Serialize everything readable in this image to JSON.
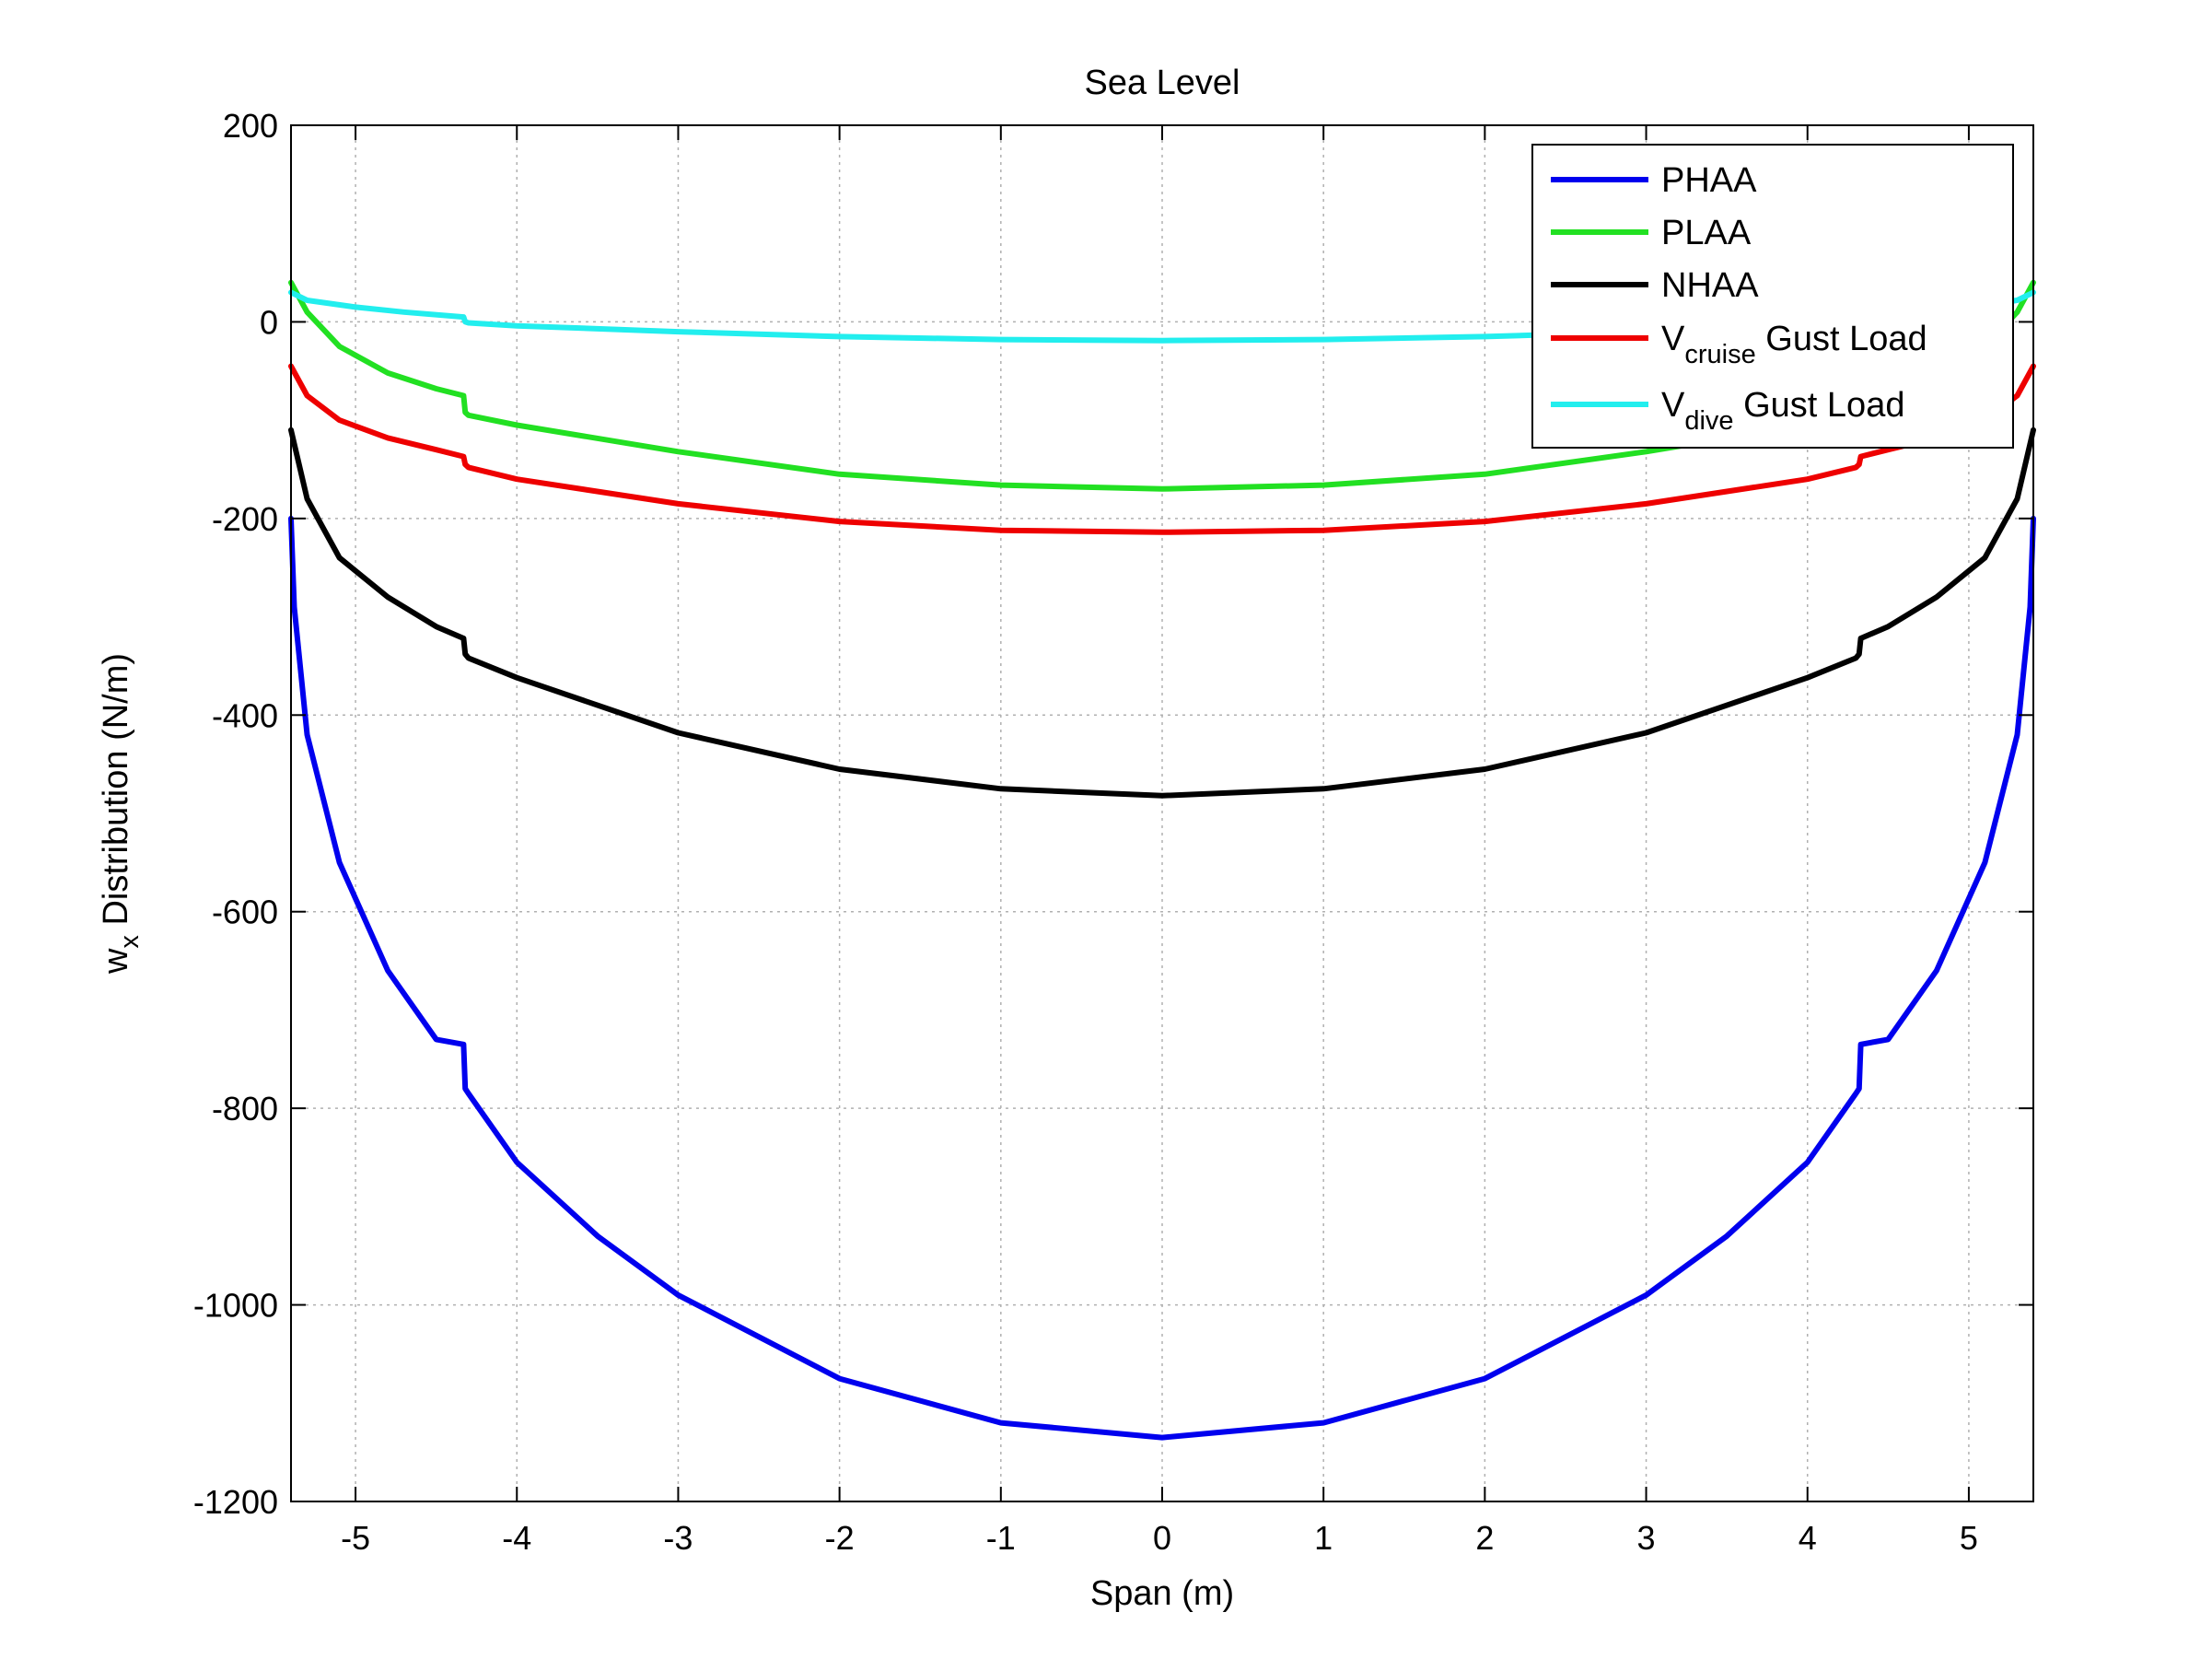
{
  "chart_data": {
    "type": "line",
    "title": "Sea Level",
    "xlabel": "Span (m)",
    "ylabel_main": "w",
    "ylabel_sub": "x",
    "ylabel_rest": " Distribution (N/m)",
    "xlim": [
      -5.4,
      5.4
    ],
    "ylim": [
      -1200,
      200
    ],
    "xticks": [
      -5,
      -4,
      -3,
      -2,
      -1,
      0,
      1,
      2,
      3,
      4,
      5
    ],
    "xtick_labels": [
      "-5",
      "-4",
      "-3",
      "-2",
      "-1",
      "0",
      "1",
      "2",
      "3",
      "4",
      "5"
    ],
    "yticks": [
      200,
      0,
      -200,
      -400,
      -600,
      -800,
      -1000,
      -1200
    ],
    "ytick_labels": [
      "200",
      "0",
      "-200",
      "-400",
      "-600",
      "-800",
      "-1000",
      "-1200"
    ],
    "grid": true,
    "legend_position": "top-right",
    "series": [
      {
        "name": "PHAA",
        "legend_main": "PHAA",
        "legend_sub": "",
        "legend_rest": "",
        "color": "#0000ee",
        "x": [
          -5.4,
          -5.38,
          -5.3,
          -5.1,
          -4.8,
          -4.5,
          -4.33,
          -4.32,
          -4.3,
          -4.0,
          -3.5,
          -3.0,
          -2.0,
          -1.0,
          0,
          1.0,
          2.0,
          3.0,
          3.5,
          4.0,
          4.3,
          4.32,
          4.33,
          4.5,
          4.8,
          5.1,
          5.3,
          5.38,
          5.4
        ],
        "y": [
          -200,
          -290,
          -420,
          -550,
          -660,
          -730,
          -735,
          -780,
          -785,
          -855,
          -930,
          -990,
          -1075,
          -1120,
          -1135,
          -1120,
          -1075,
          -990,
          -930,
          -855,
          -785,
          -780,
          -735,
          -730,
          -660,
          -550,
          -420,
          -290,
          -200
        ]
      },
      {
        "name": "PLAA",
        "legend_main": "PLAA",
        "legend_sub": "",
        "legend_rest": "",
        "color": "#22e022",
        "x": [
          -5.4,
          -5.3,
          -5.1,
          -4.8,
          -4.5,
          -4.33,
          -4.32,
          -4.3,
          -4.0,
          -3.0,
          -2.0,
          -1.0,
          0,
          1.0,
          2.0,
          3.0,
          4.0,
          4.3,
          4.32,
          4.33,
          4.5,
          4.8,
          5.1,
          5.3,
          5.4
        ],
        "y": [
          40,
          10,
          -25,
          -52,
          -68,
          -75,
          -92,
          -95,
          -105,
          -132,
          -155,
          -166,
          -170,
          -166,
          -155,
          -132,
          -105,
          -95,
          -92,
          -75,
          -68,
          -52,
          -25,
          10,
          40
        ]
      },
      {
        "name": "NHAA",
        "legend_main": "NHAA",
        "legend_sub": "",
        "legend_rest": "",
        "color": "#000000",
        "x": [
          -5.4,
          -5.3,
          -5.1,
          -4.8,
          -4.5,
          -4.33,
          -4.32,
          -4.3,
          -4.0,
          -3.0,
          -2.0,
          -1.0,
          0,
          1.0,
          2.0,
          3.0,
          4.0,
          4.3,
          4.32,
          4.33,
          4.5,
          4.8,
          5.1,
          5.3,
          5.4
        ],
        "y": [
          -110,
          -180,
          -240,
          -280,
          -310,
          -322,
          -338,
          -342,
          -362,
          -418,
          -455,
          -475,
          -482,
          -475,
          -455,
          -418,
          -362,
          -342,
          -338,
          -322,
          -310,
          -280,
          -240,
          -180,
          -110
        ]
      },
      {
        "name": "V cruise Gust Load",
        "legend_main": "V",
        "legend_sub": "cruise",
        "legend_rest": " Gust Load",
        "color": "#ee0000",
        "x": [
          -5.4,
          -5.3,
          -5.1,
          -4.8,
          -4.5,
          -4.33,
          -4.32,
          -4.3,
          -4.0,
          -3.0,
          -2.0,
          -1.0,
          0,
          1.0,
          2.0,
          3.0,
          4.0,
          4.3,
          4.32,
          4.33,
          4.5,
          4.8,
          5.1,
          5.3,
          5.4
        ],
        "y": [
          -45,
          -75,
          -100,
          -118,
          -130,
          -137,
          -145,
          -148,
          -160,
          -185,
          -203,
          -212,
          -214,
          -212,
          -203,
          -185,
          -160,
          -148,
          -145,
          -137,
          -130,
          -118,
          -100,
          -75,
          -45
        ]
      },
      {
        "name": "V dive Gust Load",
        "legend_main": "V",
        "legend_sub": "dive",
        "legend_rest": " Gust Load",
        "color": "#22eeee",
        "x": [
          -5.4,
          -5.3,
          -5.0,
          -4.7,
          -4.33,
          -4.32,
          -4.3,
          -4.0,
          -3.0,
          -2.0,
          -1.0,
          0,
          1.0,
          2.0,
          3.0,
          4.0,
          4.3,
          4.32,
          4.33,
          4.7,
          5.0,
          5.3,
          5.4
        ],
        "y": [
          30,
          22,
          15,
          10,
          5,
          0,
          -1,
          -4,
          -10,
          -15,
          -18,
          -19,
          -18,
          -15,
          -10,
          -4,
          -1,
          0,
          5,
          10,
          15,
          22,
          30
        ]
      }
    ]
  }
}
